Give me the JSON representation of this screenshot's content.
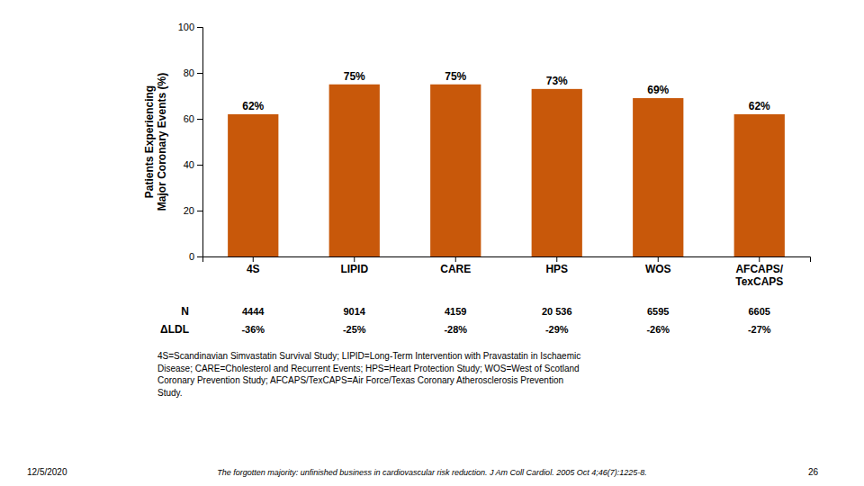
{
  "chart_data": {
    "type": "bar",
    "categories": [
      "4S",
      "LIPID",
      "CARE",
      "HPS",
      "WOS",
      "AFCAPS/\nTexCAPS"
    ],
    "values": [
      62,
      75,
      75,
      73,
      69,
      62
    ],
    "value_labels": [
      "62%",
      "75%",
      "75%",
      "73%",
      "69%",
      "62%"
    ],
    "data_labels": true,
    "color": "#C8580A",
    "ylim": [
      0,
      100
    ],
    "yticks": [
      0,
      20,
      40,
      60,
      80,
      100
    ],
    "grid": false,
    "y_label": "Patients Experiencing\nMajor Coronary Events (%)",
    "rows": [
      {
        "label": "N",
        "values": [
          "4444",
          "9014",
          "4159",
          "20 536",
          "6595",
          "6605"
        ]
      },
      {
        "label": "ΔLDL",
        "values": [
          "-36%",
          "-25%",
          "-28%",
          "-29%",
          "-26%",
          "-27%"
        ]
      }
    ],
    "footnote": "4S=Scandinavian Simvastatin Survival Study; LIPID=Long-Term Intervention with Pravastatin in Ischaemic\nDisease; CARE=Cholesterol and Recurrent Events; HPS=Heart Protection Study; WOS=West of Scotland\nCoronary Prevention Study; AFCAPS/TexCAPS=Air Force/Texas Coronary Atherosclerosis Prevention\nStudy.",
    "citation": "The forgotten majority: unfinished business in cardiovascular risk reduction. J Am Coll Cardiol. 2005 Oct 4;46(7):1225-8.",
    "page_number": "26",
    "date": "12/5/2020"
  }
}
